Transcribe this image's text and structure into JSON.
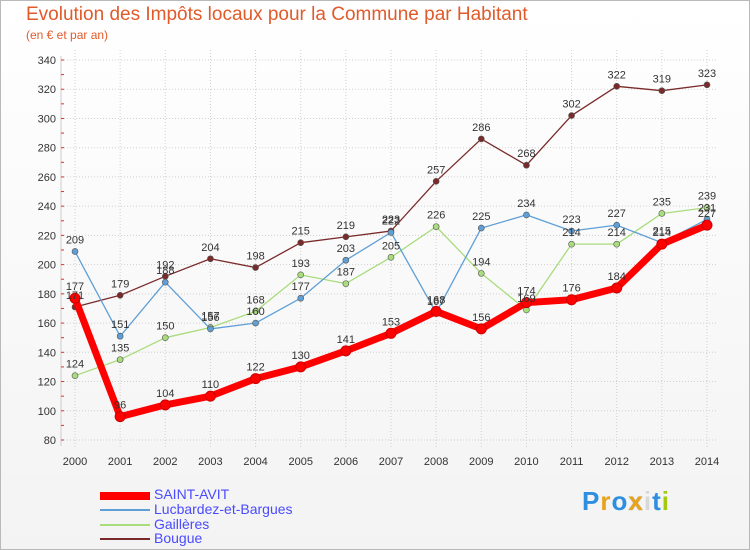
{
  "colors": {
    "saint_avit": "#ff0000",
    "lucbardez": "#5f9fd6",
    "gailleres": "#a9dc7c",
    "bougue": "#7a2a2a",
    "title": "#e05a2a",
    "axis_text": "#333333",
    "grid": "#d0d0d0",
    "legend_text": "#4a4aff"
  },
  "logo": {
    "text": "Proxiti",
    "letter_colors": [
      "#2e8fe0",
      "#e8a21c",
      "#2e8fe0",
      "#e8a21c",
      "#d8d8d8",
      "#2e8fe0",
      "#a5c90f"
    ]
  },
  "chart_data": {
    "type": "line",
    "title": "Evolution des Impôts locaux pour la Commune par Habitant",
    "subtitle": "(en € et par an)",
    "xlabel": "",
    "ylabel": "",
    "x": [
      2000,
      2001,
      2002,
      2003,
      2004,
      2005,
      2006,
      2007,
      2008,
      2009,
      2010,
      2011,
      2012,
      2013,
      2014
    ],
    "ylim": [
      80,
      340
    ],
    "yticks": [
      80,
      100,
      120,
      140,
      160,
      180,
      200,
      220,
      240,
      260,
      280,
      300,
      320,
      340
    ],
    "grid": true,
    "legend_position": "bottom-left",
    "series": [
      {
        "key": "saint_avit",
        "name": "SAINT-AVIT",
        "width": 7,
        "marker": 5,
        "values": [
          177,
          96,
          104,
          110,
          122,
          130,
          141,
          153,
          168,
          156,
          174,
          176,
          184,
          214,
          227
        ]
      },
      {
        "key": "lucbardez",
        "name": "Lucbardez-et-Bargues",
        "width": 1.3,
        "marker": 3,
        "values": [
          209,
          151,
          188,
          156,
          160,
          177,
          203,
          222,
          167,
          225,
          234,
          223,
          227,
          215,
          231
        ]
      },
      {
        "key": "gailleres",
        "name": "Gaillères",
        "width": 1.3,
        "marker": 3,
        "values": [
          124,
          135,
          150,
          157,
          168,
          193,
          187,
          205,
          226,
          194,
          169,
          214,
          214,
          235,
          239
        ]
      },
      {
        "key": "bougue",
        "name": "Bougue",
        "width": 1.3,
        "marker": 3,
        "values": [
          171,
          179,
          192,
          204,
          198,
          215,
          219,
          223,
          257,
          286,
          268,
          302,
          322,
          319,
          323
        ]
      }
    ]
  }
}
